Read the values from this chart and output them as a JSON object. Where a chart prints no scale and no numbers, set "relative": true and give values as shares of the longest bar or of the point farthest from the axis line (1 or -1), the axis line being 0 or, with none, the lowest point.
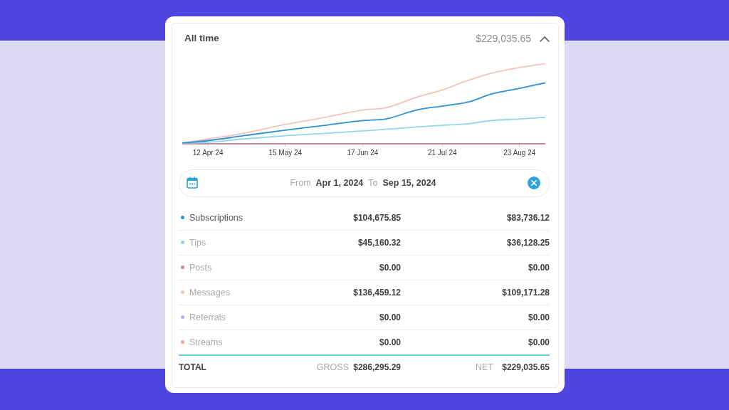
{
  "chart_data": {
    "type": "line",
    "title": "All time",
    "subtitle": "$229,035.65",
    "x": [
      "2024-04-01",
      "2024-04-12",
      "2024-04-27",
      "2024-05-15",
      "2024-06-01",
      "2024-06-17",
      "2024-06-27",
      "2024-07-10",
      "2024-07-21",
      "2024-08-01",
      "2024-08-11",
      "2024-08-23",
      "2024-09-03"
    ],
    "xlim": [
      "2024-04-01",
      "2024-09-03"
    ],
    "xticks": [
      {
        "value": "2024-04-12",
        "label": "12 Apr 24"
      },
      {
        "value": "2024-05-15",
        "label": "15 May 24"
      },
      {
        "value": "2024-06-17",
        "label": "17 Jun 24"
      },
      {
        "value": "2024-07-21",
        "label": "21 Jul 24"
      },
      {
        "value": "2024-08-23",
        "label": "23 Aug 24"
      }
    ],
    "relative": true,
    "series": [
      {
        "name": "Subscriptions",
        "color": "#2d8fd5",
        "values": [
          0.01,
          0.04,
          0.1,
          0.17,
          0.23,
          0.29,
          0.31,
          0.42,
          0.47,
          0.52,
          0.62,
          0.69,
          0.76
        ]
      },
      {
        "name": "Tips",
        "color": "#8fd5ec",
        "values": [
          0.01,
          0.02,
          0.06,
          0.1,
          0.13,
          0.16,
          0.18,
          0.21,
          0.23,
          0.25,
          0.29,
          0.31,
          0.33
        ]
      },
      {
        "name": "Posts",
        "color": "#c98a9a",
        "values": [
          0,
          0,
          0,
          0,
          0,
          0,
          0,
          0,
          0,
          0,
          0,
          0,
          0
        ]
      },
      {
        "name": "Messages",
        "color": "#f2c4b6",
        "values": [
          0.01,
          0.06,
          0.13,
          0.24,
          0.33,
          0.42,
          0.45,
          0.58,
          0.67,
          0.79,
          0.88,
          0.95,
          1
        ]
      },
      {
        "name": "Referrals",
        "color": "#b8b0ea",
        "values": [
          null,
          null,
          null,
          null,
          null,
          null,
          null,
          null,
          null,
          null,
          null,
          null,
          null
        ]
      },
      {
        "name": "Streams",
        "color": "#f0a392",
        "values": [
          null,
          null,
          null,
          null,
          null,
          null,
          null,
          null,
          null,
          null,
          null,
          null,
          null
        ]
      }
    ],
    "annotations": [
      "From",
      "Apr 1, 2024",
      "To",
      "Sep 15, 2024",
      "$104,675.85",
      "$83,736.12",
      "$45,160.32",
      "$36,128.25",
      "$0.00",
      "$0.00",
      "$136,459.12",
      "$109,171.28",
      "$0.00",
      "$0.00",
      "$0.00",
      "$0.00",
      "TOTAL",
      "GROSS",
      "$286,295.29",
      "NET",
      "$229,035.65"
    ],
    "legend": "bottom",
    "marker": "none"
  }
}
